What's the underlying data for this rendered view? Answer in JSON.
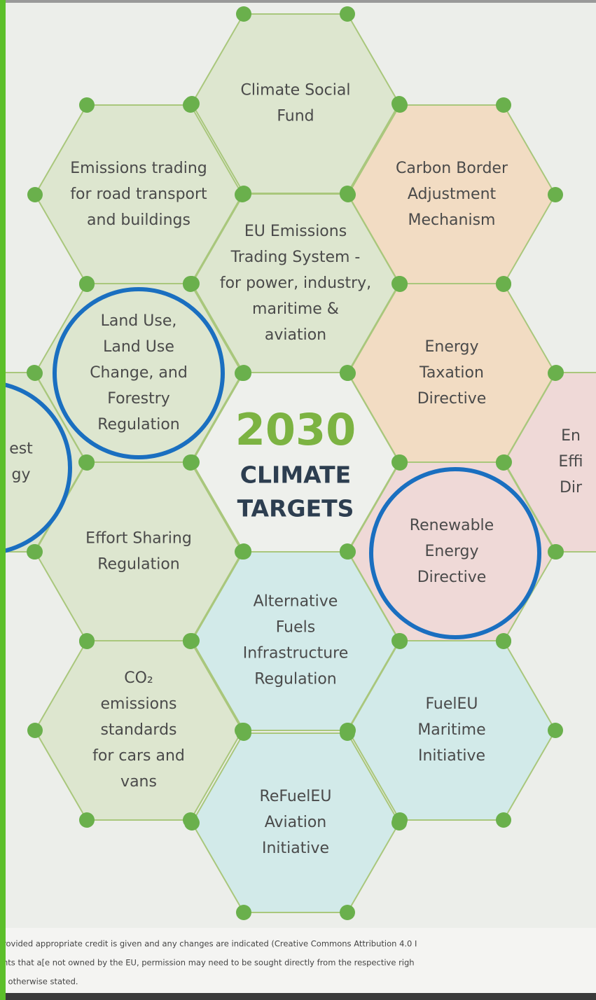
{
  "hexagons": [
    {
      "lines": [
        "Climate Social",
        "Fund"
      ]
    },
    {
      "lines": [
        "Emissions trading",
        "for road transport",
        "and buildings"
      ]
    },
    {
      "lines": [
        "Carbon Border",
        "Adjustment",
        "Mechanism"
      ]
    },
    {
      "lines": [
        "EU Emissions",
        "Trading System -",
        "for power, industry,",
        "maritime &",
        "aviation"
      ]
    },
    {
      "lines": [
        "Land Use,",
        "Land Use",
        "Change, and",
        "Forestry",
        "Regulation"
      ]
    },
    {
      "lines": [
        "Energy",
        "Taxation",
        "Directive"
      ]
    },
    {
      "lines": [
        "Effort Sharing",
        "Regulation"
      ]
    },
    {
      "lines": [
        "Renewable",
        "Energy",
        "Directive"
      ]
    },
    {
      "lines": [
        "Alternative",
        "Fuels",
        "Infrastructure",
        "Regulation"
      ]
    },
    {
      "lines": [
        "CO₂",
        "emissions",
        "standards",
        "for cars and",
        "vans"
      ]
    },
    {
      "lines": [
        "FuelEU",
        "Maritime",
        "Initiative"
      ]
    },
    {
      "lines": [
        "ReFuelEU",
        "Aviation",
        "Initiative"
      ]
    },
    {
      "lines": [
        "En",
        "Effi",
        "Dir"
      ]
    },
    {
      "lines": [
        "est",
        "gy"
      ]
    }
  ],
  "center": {
    "year": "2030",
    "line1": "CLIMATE",
    "line2": "TARGETS"
  },
  "footer": {
    "lines": [
      "rovided appropriate credit is given and any changes are indicated (Creative Commons Attribution 4.0 I",
      "nts that a[e not owned by the EU, permission may need to be sought directly from the respective righ",
      ": otherwise stated."
    ]
  }
}
